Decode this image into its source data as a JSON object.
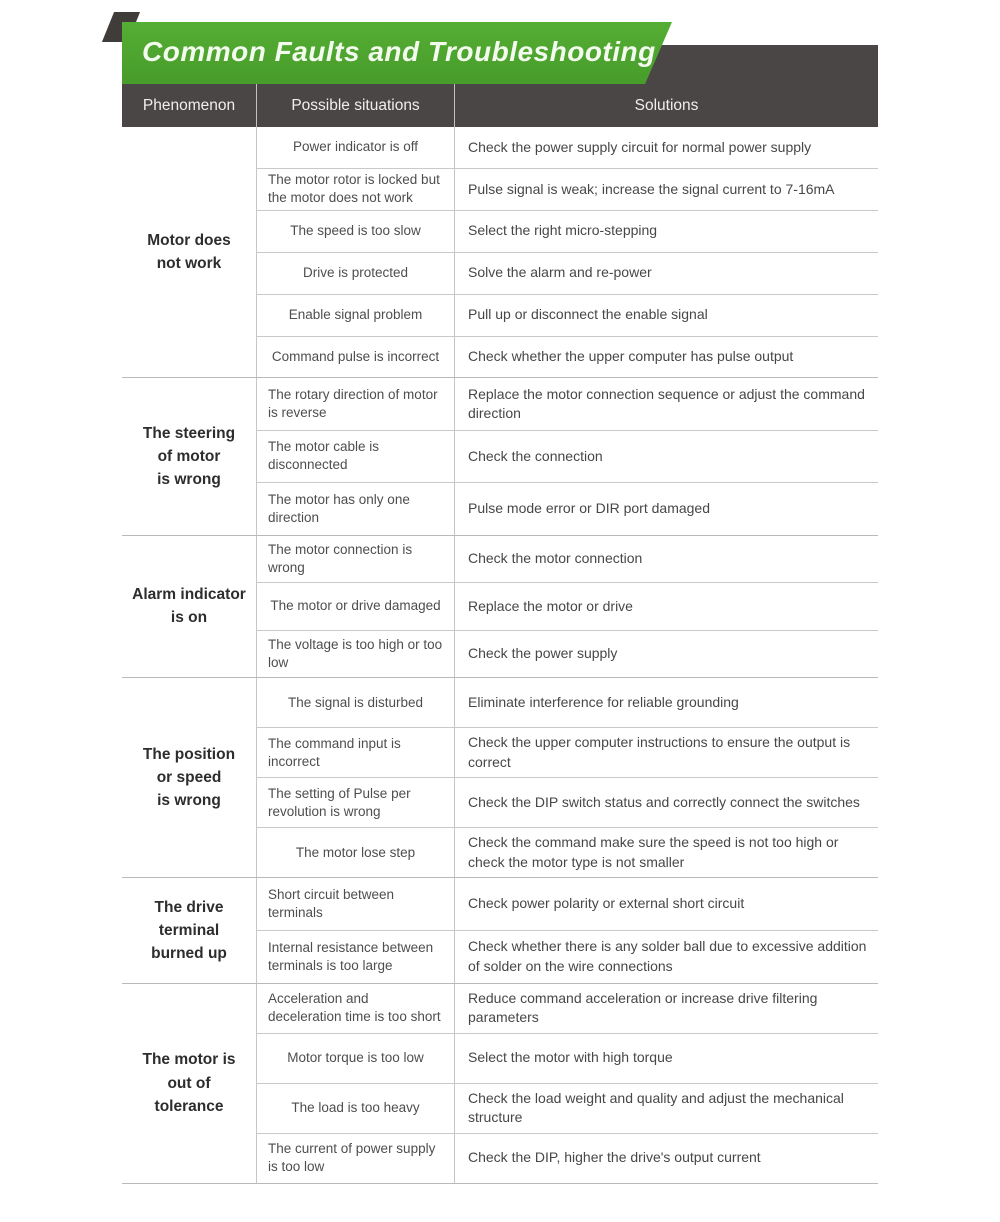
{
  "header": {
    "title": "Common Faults and Troubleshooting",
    "banner_color": "#4ca42e",
    "bar_color": "#4a4645"
  },
  "table": {
    "columns": [
      "Phenomenon",
      "Possible situations",
      "Solutions"
    ],
    "groups": [
      {
        "phenomenon": "Motor does\nnot work",
        "rows": [
          {
            "situation": "Power indicator is off",
            "solution": "Check the power supply circuit for normal power supply"
          },
          {
            "situation": "The motor rotor is locked but the motor does not work",
            "solution": "Pulse signal is weak; increase the signal current to 7-16mA"
          },
          {
            "situation": "The speed is too slow",
            "solution": "Select the right micro-stepping"
          },
          {
            "situation": "Drive is protected",
            "solution": "Solve the alarm and re-power"
          },
          {
            "situation": "Enable signal problem",
            "solution": "Pull up or disconnect the enable signal"
          },
          {
            "situation": "Command pulse is incorrect",
            "solution": "Check whether the upper computer has pulse output"
          }
        ]
      },
      {
        "phenomenon": "The steering\nof motor\nis wrong",
        "rows": [
          {
            "situation": "The rotary direction of motor is reverse",
            "solution": "Replace the motor connection sequence or adjust the command direction"
          },
          {
            "situation": "The motor cable is disconnected",
            "solution": "Check the connection"
          },
          {
            "situation": "The motor has only one direction",
            "solution": "Pulse mode error or DIR port damaged"
          }
        ]
      },
      {
        "phenomenon": "Alarm indicator\nis on",
        "rows": [
          {
            "situation": "The motor connection is wrong",
            "solution": "Check the motor connection"
          },
          {
            "situation": "The motor or drive damaged",
            "solution": "Replace the motor or drive"
          },
          {
            "situation": "The voltage is too high or too low",
            "solution": "Check the power supply"
          }
        ]
      },
      {
        "phenomenon": "The position\nor speed\nis wrong",
        "rows": [
          {
            "situation": "The signal is disturbed",
            "solution": "Eliminate interference for reliable grounding"
          },
          {
            "situation": "The command input is incorrect",
            "solution": "Check the upper computer instructions to ensure the output is correct"
          },
          {
            "situation": "The setting of Pulse per revolution is wrong",
            "solution": "Check the DIP switch status and correctly connect the switches"
          },
          {
            "situation": "The motor lose step",
            "solution": "Check the command make sure the speed is not too high or check the motor type is not smaller"
          }
        ]
      },
      {
        "phenomenon": "The drive\nterminal\nburned up",
        "rows": [
          {
            "situation": "Short circuit between terminals",
            "solution": "Check power polarity or external short circuit"
          },
          {
            "situation": "Internal resistance between terminals is too large",
            "solution": "Check whether there is any solder ball due to excessive addition of solder on the wire connections"
          }
        ]
      },
      {
        "phenomenon": "The motor is\nout of\ntolerance",
        "rows": [
          {
            "situation": "Acceleration and deceleration time is too short",
            "solution": "Reduce command acceleration or increase drive filtering parameters"
          },
          {
            "situation": "Motor torque is too low",
            "solution": "Select the motor with high torque"
          },
          {
            "situation": "The load is too heavy",
            "solution": "Check the load weight and quality and adjust the mechanical structure"
          },
          {
            "situation": "The current of power supply is too low",
            "solution": "Check the DIP, higher the drive's output current"
          }
        ]
      }
    ]
  }
}
